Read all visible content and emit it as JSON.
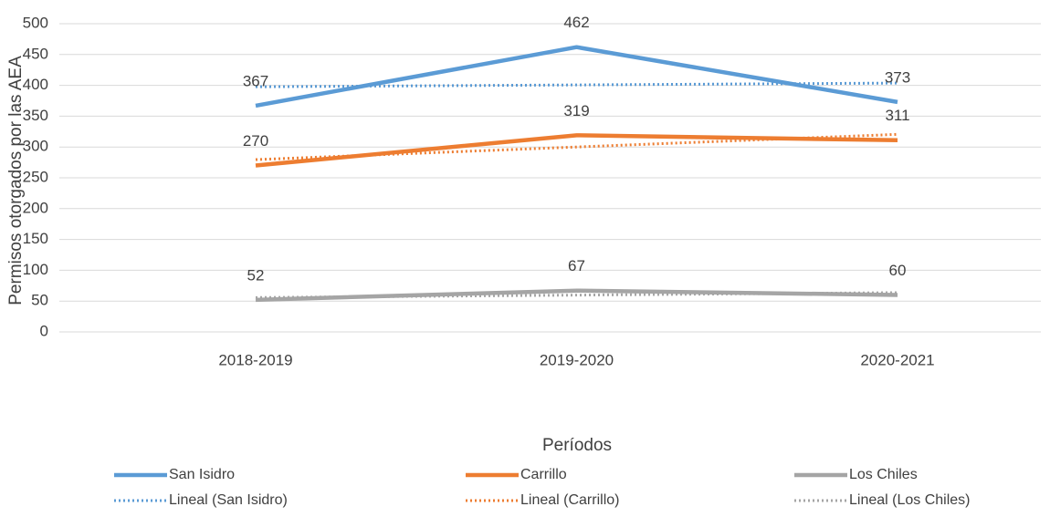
{
  "chart_data": {
    "type": "line",
    "x_label": "Períodos",
    "y_label": "Permisos otorgados por las AEA",
    "categories": [
      "2018-2019",
      "2019-2020",
      "2020-2021"
    ],
    "series": [
      {
        "name": "San Isidro",
        "color": "#5b9bd5",
        "dash": "solid",
        "values": [
          367,
          462,
          373
        ],
        "data_labels": true
      },
      {
        "name": "Carrillo",
        "color": "#ed7d31",
        "dash": "solid",
        "values": [
          270,
          319,
          311
        ],
        "data_labels": true
      },
      {
        "name": "Los Chiles",
        "color": "#a5a5a5",
        "dash": "solid",
        "values": [
          52,
          67,
          60
        ],
        "data_labels": true
      },
      {
        "name": "Lineal (San Isidro)",
        "color": "#5b9bd5",
        "dash": "dotted",
        "values": [
          397.7,
          400.7,
          403.7
        ]
      },
      {
        "name": "Lineal (Carrillo)",
        "color": "#ed7d31",
        "dash": "dotted",
        "values": [
          279.5,
          300,
          320.5
        ]
      },
      {
        "name": "Lineal (Los Chiles)",
        "color": "#a5a5a5",
        "dash": "dotted",
        "values": [
          55.7,
          59.7,
          63.7
        ]
      }
    ],
    "ylim": [
      0,
      500
    ],
    "yticks": [
      0,
      50,
      100,
      150,
      200,
      250,
      300,
      350,
      400,
      450,
      500
    ],
    "grid": true,
    "legend": "bottom"
  }
}
